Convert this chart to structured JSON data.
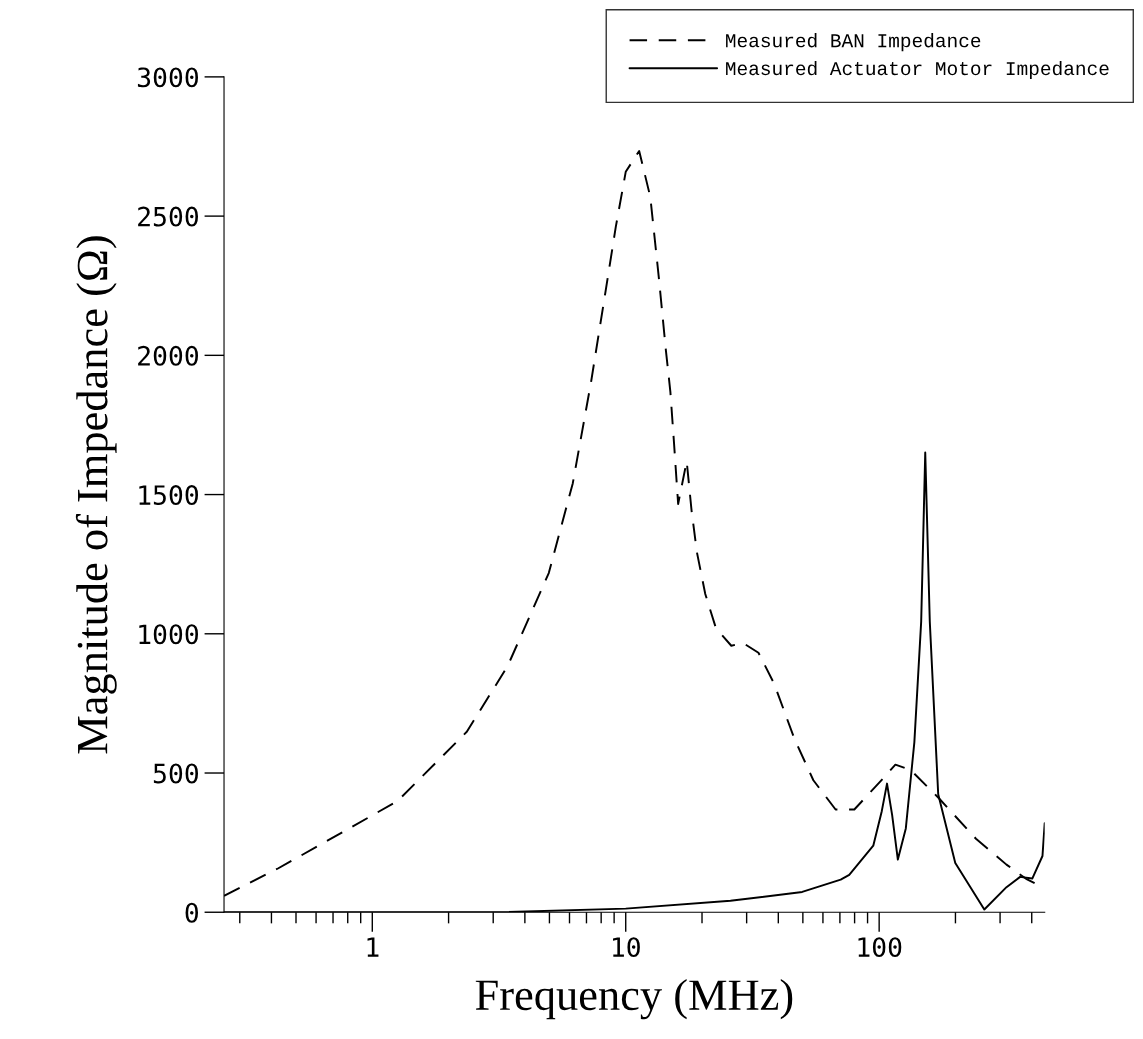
{
  "chart_data": {
    "type": "line",
    "xlabel": "Frequency (MHz)",
    "ylabel": "Magnitude of Impedance (Ω)",
    "log": "x",
    "xlim": [
      0.26,
      450
    ],
    "ylim": [
      0,
      3000
    ],
    "xticks": [
      1,
      10,
      100
    ],
    "yticks": [
      0,
      500,
      1000,
      1500,
      2000,
      2500,
      3000
    ],
    "grid": false,
    "legend": "top right",
    "series": [
      {
        "name": "Measured BAN Impedance",
        "color": "#000000",
        "line_style": "dashed",
        "x": [
          0.26,
          0.426,
          0.79,
          1.26,
          2.36,
          3.42,
          4.97,
          6.18,
          7.3,
          8.22,
          9.14,
          10,
          11.3,
          12.5,
          13.5,
          14.4,
          15.0,
          15.5,
          16.1,
          17.4,
          18.2,
          19.1,
          20.6,
          22.7,
          26.1,
          29,
          33.4,
          38.5,
          46.3,
          55,
          67.3,
          79.8,
          100.7,
          115.9,
          133,
          171,
          241,
          318,
          380,
          430
        ],
        "values": [
          59,
          158,
          295,
          400,
          648,
          884,
          1218,
          1540,
          1905,
          2198,
          2462,
          2659,
          2734,
          2569,
          2282,
          2019,
          1870,
          1688,
          1466,
          1620,
          1440,
          1292,
          1143,
          1020,
          957,
          967,
          932,
          821,
          623,
          474,
          369,
          369,
          468,
          530,
          511,
          412,
          264,
          171,
          120,
          95
        ]
      },
      {
        "name": "Measured Actuator Motor Impedance",
        "color": "#000000",
        "line_style": "solid",
        "x": [
          0.26,
          3.16,
          10,
          25.9,
          49.7,
          70.5,
          76.2,
          94.8,
          102.4,
          107.4,
          112.5,
          118.5,
          127.4,
          137.7,
          146.5,
          152,
          158.4,
          171,
          199.7,
          260,
          318,
          360,
          402,
          441,
          450
        ],
        "values": [
          0,
          0,
          13,
          41,
          73,
          117,
          134,
          239,
          363,
          462,
          350,
          189,
          301,
          611,
          1044,
          1651,
          1044,
          424,
          177,
          10,
          90,
          127,
          121,
          202,
          320
        ]
      }
    ]
  }
}
